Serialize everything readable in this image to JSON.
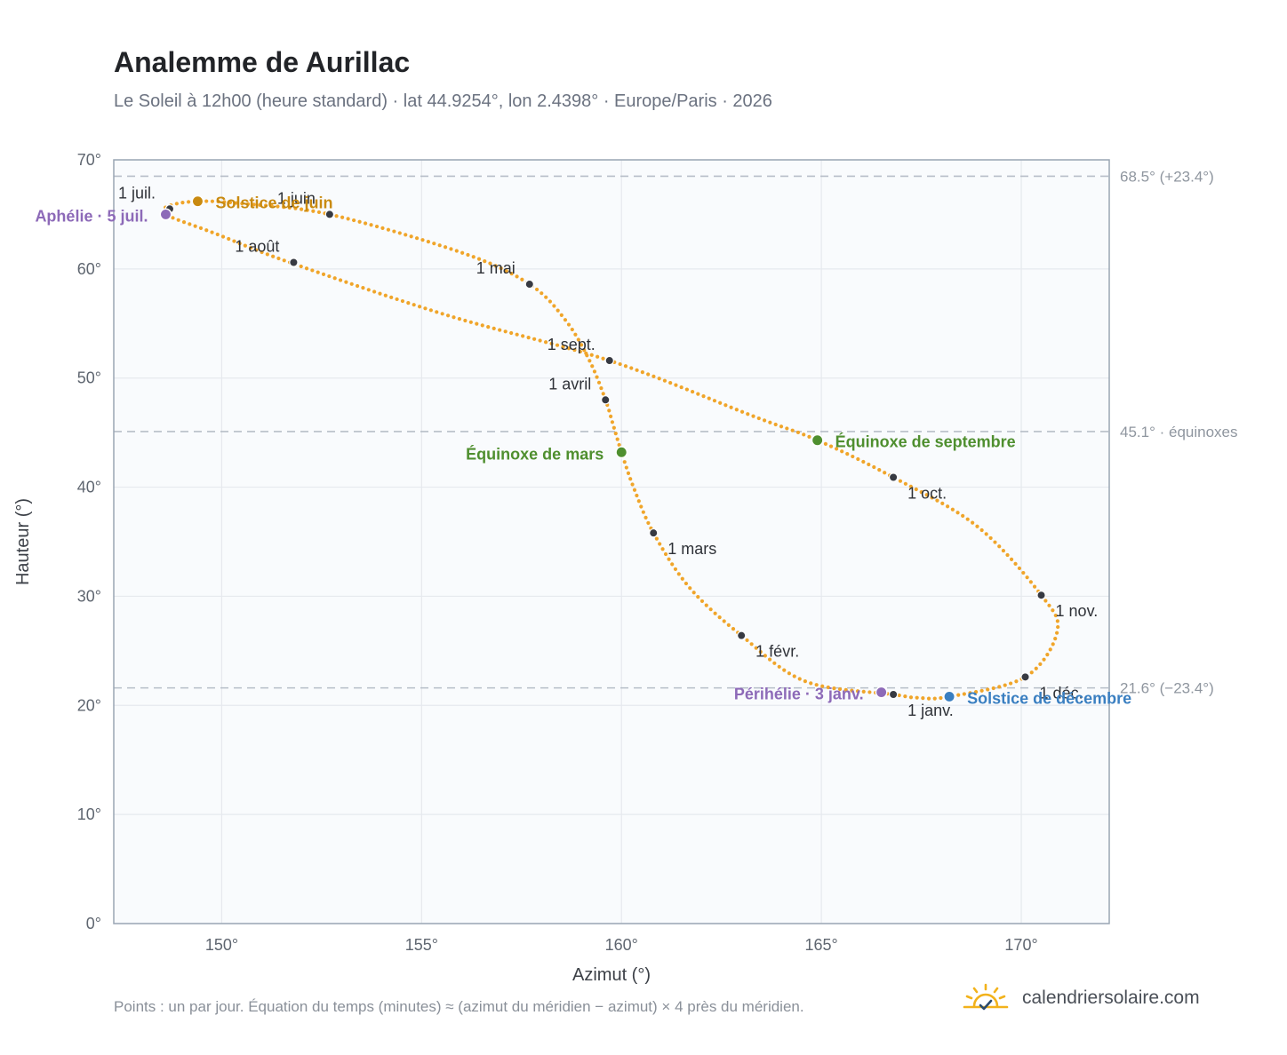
{
  "header": {
    "title": "Analemme de Aurillac",
    "subtitle": "Le Soleil à 12h00 (heure standard) · lat 44.9254°, lon 2.4398° · Europe/Paris · 2026"
  },
  "footer": {
    "note": "Points : un par jour. Équation du temps (minutes) ≈ (azimut du méridien − azimut) × 4 près du méridien.",
    "brand": "calendriersolaire.com",
    "brand_icon": "sun-check-icon"
  },
  "colors": {
    "curve": "#f0a52a",
    "month_marker": "#373a42",
    "solstice_june": "#c98a10",
    "solstice_december": "#3a7fc1",
    "equinox": "#4f8f2f",
    "aphelion_perihelion": "#8d6ab8",
    "reference_line": "#b7bec8",
    "grid": "#e6e9ee",
    "plot_background": "#f9fbfd",
    "axis_frame": "#9aa6b4"
  },
  "chart_data": {
    "type": "scatter",
    "xlabel": "Azimut (°)",
    "ylabel": "Hauteur (°)",
    "xlim": [
      147.3,
      172.2
    ],
    "ylim": [
      0,
      70
    ],
    "x_ticks": [
      150,
      155,
      160,
      165,
      170
    ],
    "x_tick_labels": [
      "150°",
      "155°",
      "160°",
      "165°",
      "170°"
    ],
    "y_ticks": [
      0,
      10,
      20,
      30,
      40,
      50,
      60,
      70
    ],
    "y_tick_labels": [
      "0°",
      "10°",
      "20°",
      "30°",
      "40°",
      "50°",
      "60°",
      "70°"
    ],
    "grid": true,
    "reference_lines": [
      {
        "y": 68.5,
        "label": "68.5° (+23.4°)"
      },
      {
        "y": 45.1,
        "label": "45.1° · équinoxes"
      },
      {
        "y": 21.6,
        "label": "21.6° (−23.4°)"
      }
    ],
    "path_anchors": [
      {
        "az": 166.8,
        "alt": 21.0
      },
      {
        "az": 164.6,
        "alt": 22.2
      },
      {
        "az": 163.0,
        "alt": 26.4
      },
      {
        "az": 161.7,
        "alt": 30.8
      },
      {
        "az": 160.8,
        "alt": 35.8
      },
      {
        "az": 160.3,
        "alt": 40.0
      },
      {
        "az": 160.0,
        "alt": 43.2
      },
      {
        "az": 159.8,
        "alt": 45.6
      },
      {
        "az": 159.6,
        "alt": 48.0
      },
      {
        "az": 159.2,
        "alt": 51.6
      },
      {
        "az": 158.6,
        "alt": 55.3
      },
      {
        "az": 157.7,
        "alt": 58.6
      },
      {
        "az": 156.0,
        "alt": 61.5
      },
      {
        "az": 152.7,
        "alt": 65.0
      },
      {
        "az": 150.5,
        "alt": 66.0
      },
      {
        "az": 149.4,
        "alt": 66.2
      },
      {
        "az": 148.7,
        "alt": 65.8
      },
      {
        "az": 148.6,
        "alt": 65.0
      },
      {
        "az": 149.8,
        "alt": 63.3
      },
      {
        "az": 151.7,
        "alt": 60.6
      },
      {
        "az": 155.6,
        "alt": 55.8
      },
      {
        "az": 159.7,
        "alt": 51.6
      },
      {
        "az": 163.3,
        "alt": 46.5
      },
      {
        "az": 164.9,
        "alt": 44.3
      },
      {
        "az": 166.8,
        "alt": 40.9
      },
      {
        "az": 168.9,
        "alt": 36.4
      },
      {
        "az": 170.5,
        "alt": 30.1
      },
      {
        "az": 170.9,
        "alt": 26.8
      },
      {
        "az": 170.1,
        "alt": 22.6
      },
      {
        "az": 168.2,
        "alt": 20.8
      },
      {
        "az": 167.4,
        "alt": 20.7
      },
      {
        "az": 166.8,
        "alt": 21.0
      }
    ],
    "month_markers": [
      {
        "label": "1 janv.",
        "az": 166.8,
        "alt": 21.0,
        "anchor": "start",
        "dx": 16,
        "dy": 24
      },
      {
        "label": "1 févr.",
        "az": 163.0,
        "alt": 26.4,
        "anchor": "start",
        "dx": 16,
        "dy": 24
      },
      {
        "label": "1 mars",
        "az": 160.8,
        "alt": 35.8,
        "anchor": "start",
        "dx": 16,
        "dy": 24
      },
      {
        "label": "1 avril",
        "az": 159.6,
        "alt": 48.0,
        "anchor": "end",
        "dx": -16,
        "dy": -12
      },
      {
        "label": "1 mai",
        "az": 157.7,
        "alt": 58.6,
        "anchor": "end",
        "dx": -16,
        "dy": -12
      },
      {
        "label": "1 juin",
        "az": 152.7,
        "alt": 65.0,
        "anchor": "end",
        "dx": -16,
        "dy": -12
      },
      {
        "label": "1 juil.",
        "az": 148.7,
        "alt": 65.5,
        "anchor": "end",
        "dx": -16,
        "dy": -12
      },
      {
        "label": "1 août",
        "az": 151.8,
        "alt": 60.6,
        "anchor": "end",
        "dx": -16,
        "dy": -12
      },
      {
        "label": "1 sept.",
        "az": 159.7,
        "alt": 51.6,
        "anchor": "end",
        "dx": -16,
        "dy": -12
      },
      {
        "label": "1 oct.",
        "az": 166.8,
        "alt": 40.9,
        "anchor": "start",
        "dx": 16,
        "dy": 24
      },
      {
        "label": "1 nov.",
        "az": 170.5,
        "alt": 30.1,
        "anchor": "start",
        "dx": 16,
        "dy": 24
      },
      {
        "label": "1 déc.",
        "az": 170.1,
        "alt": 22.6,
        "anchor": "start",
        "dx": 16,
        "dy": 24
      }
    ],
    "events": [
      {
        "label": "Solstice de juin",
        "az": 149.4,
        "alt": 66.2,
        "color": "#c98a10",
        "anchor": "start",
        "dx": 20,
        "dy": 8
      },
      {
        "label": "Aphélie · 5 juil.",
        "az": 148.6,
        "alt": 65.0,
        "color": "#8d6ab8",
        "anchor": "end",
        "dx": -20,
        "dy": 8
      },
      {
        "label": "Équinoxe de mars",
        "az": 160.0,
        "alt": 43.2,
        "color": "#4f8f2f",
        "anchor": "end",
        "dx": -20,
        "dy": 8
      },
      {
        "label": "Équinoxe de septembre",
        "az": 164.9,
        "alt": 44.3,
        "color": "#4f8f2f",
        "anchor": "start",
        "dx": 20,
        "dy": 8
      },
      {
        "label": "Périhélie · 3 janv.",
        "az": 166.5,
        "alt": 21.2,
        "color": "#8d6ab8",
        "anchor": "end",
        "dx": -20,
        "dy": 8
      },
      {
        "label": "Solstice de décembre",
        "az": 168.2,
        "alt": 20.8,
        "color": "#3a7fc1",
        "anchor": "start",
        "dx": 20,
        "dy": 8
      }
    ],
    "daily_points": 365
  }
}
